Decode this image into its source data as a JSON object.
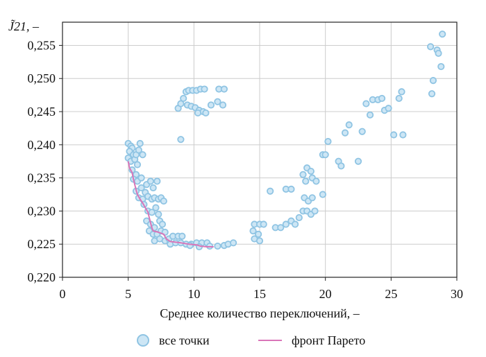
{
  "chart_data": {
    "type": "scatter",
    "ylabel": "J̃21, –",
    "xlabel": "Среднее количество переключений, –",
    "xlim": [
      0,
      30
    ],
    "ylim": [
      0.22,
      0.2585
    ],
    "x_ticks": [
      0,
      5,
      10,
      15,
      20,
      25,
      30
    ],
    "x_tick_labels": [
      "0",
      "5",
      "10",
      "15",
      "20",
      "25",
      "30"
    ],
    "y_ticks": [
      0.22,
      0.225,
      0.23,
      0.235,
      0.24,
      0.245,
      0.25,
      0.255
    ],
    "y_tick_labels": [
      "0,220",
      "0,225",
      "0,230",
      "0,235",
      "0,240",
      "0,245",
      "0,250",
      "0,255"
    ],
    "grid": true,
    "legend": {
      "position": "bottom",
      "entries": [
        {
          "label": "все точки",
          "marker": "circle"
        },
        {
          "label": "фронт Парето",
          "marker": "line"
        }
      ]
    },
    "colors": {
      "point_fill": "#cde6f5",
      "point_stroke": "#8fc4e3",
      "pareto_line": "#d975b8",
      "grid": "#cccccc",
      "axis": "#222222"
    },
    "series": [
      {
        "name": "все точки",
        "type": "scatter",
        "points": [
          [
            5.0,
            0.2402
          ],
          [
            5.2,
            0.2398
          ],
          [
            5.3,
            0.2395
          ],
          [
            5.1,
            0.239
          ],
          [
            5.4,
            0.2385
          ],
          [
            5.0,
            0.238
          ],
          [
            5.2,
            0.2375
          ],
          [
            5.5,
            0.2378
          ],
          [
            5.6,
            0.2385
          ],
          [
            5.8,
            0.2392
          ],
          [
            5.9,
            0.2402
          ],
          [
            6.1,
            0.2385
          ],
          [
            5.7,
            0.237
          ],
          [
            5.3,
            0.2362
          ],
          [
            5.6,
            0.2355
          ],
          [
            5.4,
            0.2348
          ],
          [
            5.7,
            0.2345
          ],
          [
            6.0,
            0.235
          ],
          [
            6.0,
            0.2335
          ],
          [
            5.6,
            0.233
          ],
          [
            5.8,
            0.232
          ],
          [
            6.1,
            0.2318
          ],
          [
            6.3,
            0.2328
          ],
          [
            6.4,
            0.234
          ],
          [
            6.7,
            0.2345
          ],
          [
            6.9,
            0.2335
          ],
          [
            7.2,
            0.2345
          ],
          [
            6.5,
            0.2322
          ],
          [
            6.8,
            0.2318
          ],
          [
            7.0,
            0.232
          ],
          [
            7.3,
            0.2318
          ],
          [
            7.5,
            0.232
          ],
          [
            7.7,
            0.2315
          ],
          [
            6.2,
            0.231
          ],
          [
            6.5,
            0.23
          ],
          [
            6.8,
            0.2298
          ],
          [
            7.1,
            0.2305
          ],
          [
            7.3,
            0.2295
          ],
          [
            6.4,
            0.2285
          ],
          [
            6.7,
            0.228
          ],
          [
            7.0,
            0.2275
          ],
          [
            7.4,
            0.2285
          ],
          [
            7.6,
            0.228
          ],
          [
            6.6,
            0.227
          ],
          [
            6.9,
            0.2265
          ],
          [
            7.2,
            0.2265
          ],
          [
            7.5,
            0.227
          ],
          [
            7.8,
            0.2268
          ],
          [
            7.0,
            0.2255
          ],
          [
            7.4,
            0.2258
          ],
          [
            7.8,
            0.2255
          ],
          [
            8.1,
            0.2258
          ],
          [
            8.4,
            0.2262
          ],
          [
            8.8,
            0.2262
          ],
          [
            9.1,
            0.2262
          ],
          [
            8.2,
            0.225
          ],
          [
            8.6,
            0.2252
          ],
          [
            9.0,
            0.2252
          ],
          [
            9.4,
            0.225
          ],
          [
            9.8,
            0.225
          ],
          [
            10.2,
            0.2252
          ],
          [
            10.6,
            0.2252
          ],
          [
            11.0,
            0.2252
          ],
          [
            9.7,
            0.2248
          ],
          [
            10.4,
            0.2246
          ],
          [
            11.2,
            0.2247
          ],
          [
            11.8,
            0.2247
          ],
          [
            12.3,
            0.2248
          ],
          [
            12.6,
            0.225
          ],
          [
            13.0,
            0.2252
          ],
          [
            8.8,
            0.2455
          ],
          [
            9.0,
            0.2462
          ],
          [
            9.2,
            0.247
          ],
          [
            9.4,
            0.248
          ],
          [
            9.6,
            0.2482
          ],
          [
            9.9,
            0.2482
          ],
          [
            10.2,
            0.2482
          ],
          [
            10.5,
            0.2484
          ],
          [
            10.8,
            0.2484
          ],
          [
            9.5,
            0.246
          ],
          [
            9.8,
            0.2458
          ],
          [
            10.1,
            0.2456
          ],
          [
            10.4,
            0.2452
          ],
          [
            10.7,
            0.245
          ],
          [
            10.3,
            0.2448
          ],
          [
            10.9,
            0.2448
          ],
          [
            11.3,
            0.246
          ],
          [
            11.8,
            0.2465
          ],
          [
            12.2,
            0.246
          ],
          [
            11.9,
            0.2484
          ],
          [
            12.3,
            0.2484
          ],
          [
            9.0,
            0.2408
          ],
          [
            14.6,
            0.228
          ],
          [
            15.0,
            0.228
          ],
          [
            15.3,
            0.228
          ],
          [
            14.5,
            0.227
          ],
          [
            14.9,
            0.2265
          ],
          [
            14.6,
            0.2258
          ],
          [
            15.0,
            0.2255
          ],
          [
            16.2,
            0.2275
          ],
          [
            16.6,
            0.2275
          ],
          [
            17.0,
            0.228
          ],
          [
            17.4,
            0.2285
          ],
          [
            17.7,
            0.228
          ],
          [
            18.0,
            0.229
          ],
          [
            18.3,
            0.23
          ],
          [
            18.6,
            0.23
          ],
          [
            18.9,
            0.2295
          ],
          [
            19.2,
            0.23
          ],
          [
            18.4,
            0.232
          ],
          [
            18.7,
            0.2315
          ],
          [
            19.0,
            0.232
          ],
          [
            17.0,
            0.2333
          ],
          [
            17.4,
            0.2333
          ],
          [
            18.3,
            0.2355
          ],
          [
            18.6,
            0.2365
          ],
          [
            18.9,
            0.236
          ],
          [
            18.5,
            0.2345
          ],
          [
            19.0,
            0.235
          ],
          [
            19.3,
            0.2345
          ],
          [
            19.8,
            0.2325
          ],
          [
            15.8,
            0.233
          ],
          [
            19.8,
            0.2385
          ],
          [
            20.0,
            0.2385
          ],
          [
            20.2,
            0.2405
          ],
          [
            21.0,
            0.2375
          ],
          [
            21.2,
            0.2368
          ],
          [
            21.5,
            0.2418
          ],
          [
            21.8,
            0.243
          ],
          [
            22.5,
            0.2375
          ],
          [
            22.8,
            0.242
          ],
          [
            23.1,
            0.2462
          ],
          [
            23.4,
            0.2445
          ],
          [
            23.6,
            0.2468
          ],
          [
            24.0,
            0.2468
          ],
          [
            24.3,
            0.247
          ],
          [
            24.5,
            0.2452
          ],
          [
            24.8,
            0.2455
          ],
          [
            25.2,
            0.2415
          ],
          [
            25.6,
            0.247
          ],
          [
            25.8,
            0.248
          ],
          [
            25.9,
            0.2415
          ],
          [
            28.0,
            0.2548
          ],
          [
            28.2,
            0.2497
          ],
          [
            28.5,
            0.2543
          ],
          [
            28.6,
            0.2538
          ],
          [
            28.8,
            0.2518
          ],
          [
            28.9,
            0.2567
          ],
          [
            28.1,
            0.2477
          ]
        ]
      },
      {
        "name": "фронт Парето",
        "type": "line",
        "points": [
          [
            5.0,
            0.2375
          ],
          [
            5.1,
            0.2365
          ],
          [
            5.3,
            0.2358
          ],
          [
            5.4,
            0.2348
          ],
          [
            5.5,
            0.234
          ],
          [
            5.6,
            0.2332
          ],
          [
            5.7,
            0.2325
          ],
          [
            5.9,
            0.2318
          ],
          [
            6.1,
            0.2312
          ],
          [
            6.3,
            0.2305
          ],
          [
            6.5,
            0.2298
          ],
          [
            6.6,
            0.229
          ],
          [
            6.7,
            0.2282
          ],
          [
            6.8,
            0.2275
          ],
          [
            6.9,
            0.227
          ],
          [
            7.3,
            0.2268
          ],
          [
            7.7,
            0.2265
          ],
          [
            7.9,
            0.2258
          ],
          [
            8.2,
            0.2254
          ],
          [
            9.0,
            0.2252
          ],
          [
            9.6,
            0.225
          ],
          [
            10.2,
            0.2249
          ],
          [
            10.5,
            0.2247
          ],
          [
            11.0,
            0.2246
          ],
          [
            11.5,
            0.2246
          ]
        ]
      }
    ]
  }
}
